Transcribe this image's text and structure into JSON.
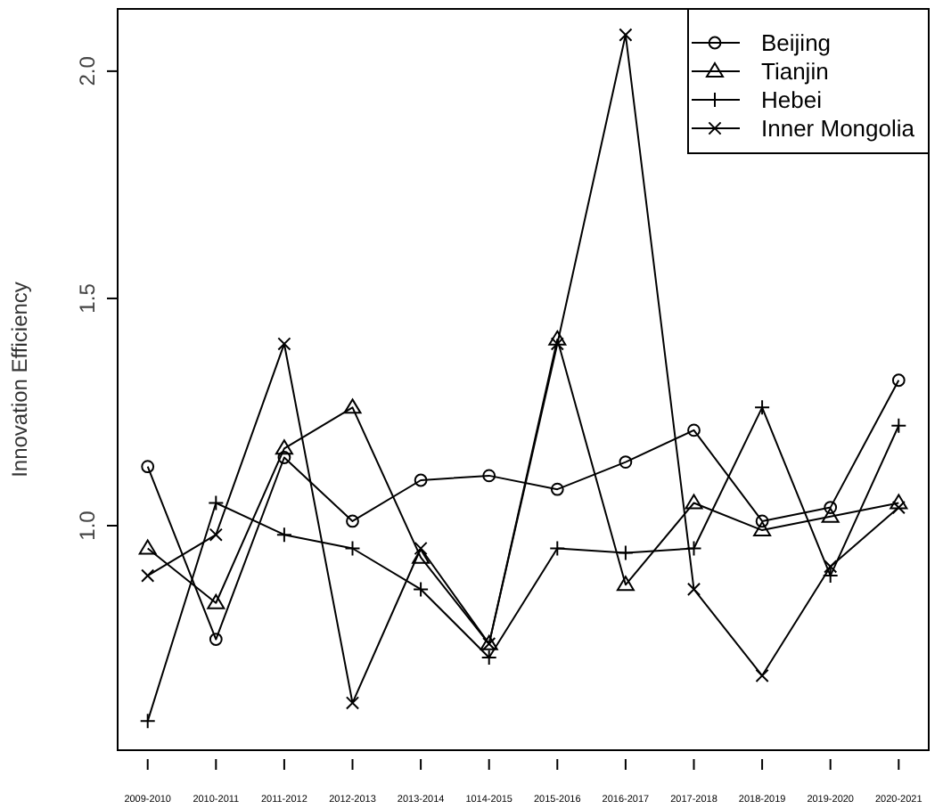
{
  "chart_data": {
    "type": "line",
    "ylabel": "Innovation Efficiency",
    "categories": [
      "2009-2010",
      "2010-2011",
      "2011-2012",
      "2012-2013",
      "2013-2014",
      "1014-2015",
      "2015-2016",
      "2016-2017",
      "2017-2018",
      "2018-2019",
      "2019-2020",
      "2020-2021"
    ],
    "ylim": [
      0.506,
      2.137
    ],
    "yticks": [
      {
        "value": 1,
        "label": "1.0"
      },
      {
        "value": 1.5,
        "label": "1.5"
      },
      {
        "value": 2,
        "label": "2.0"
      }
    ],
    "grid": false,
    "legend": "top right",
    "series": [
      {
        "name": "Beijing",
        "color": "#000000",
        "marker": "circle",
        "values": [
          1.13,
          0.75,
          1.15,
          1.01,
          1.1,
          1.11,
          1.08,
          1.14,
          1.21,
          1.01,
          1.04,
          1.32
        ]
      },
      {
        "name": "Tianjin",
        "color": "#000000",
        "marker": "triangle",
        "values": [
          0.95,
          0.83,
          1.17,
          1.26,
          0.93,
          0.74,
          1.41,
          0.87,
          1.05,
          0.99,
          1.02,
          1.05
        ]
      },
      {
        "name": "Hebei",
        "color": "#000000",
        "marker": "cross",
        "values": [
          0.57,
          1.05,
          0.98,
          0.95,
          0.86,
          0.71,
          0.95,
          0.94,
          0.95,
          1.26,
          0.89,
          1.22
        ]
      },
      {
        "name": "Inner Mongolia",
        "color": "#000000",
        "marker": "x",
        "values": [
          0.89,
          0.98,
          1.4,
          0.61,
          0.95,
          0.74,
          1.4,
          2.08,
          0.86,
          0.67,
          0.91,
          1.04
        ]
      }
    ]
  }
}
